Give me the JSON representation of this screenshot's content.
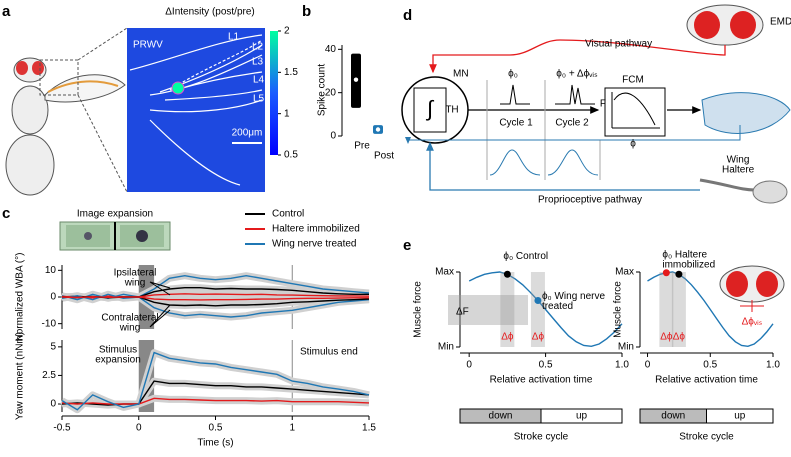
{
  "panel_labels": [
    "a",
    "b",
    "c",
    "d",
    "e"
  ],
  "panel_a": {
    "colorbar_title": "ΔIntensity (post/pre)",
    "colorbar_lim": [
      0.5,
      2
    ],
    "colorbar_ticks": [
      2,
      1.5,
      1,
      0.5
    ],
    "labels": [
      "PRWV",
      "L1",
      "L2",
      "L3",
      "L4",
      "L5"
    ],
    "scale_bar": "200μm"
  },
  "panel_c": {
    "inset_title": "Image expansion",
    "annotations": [
      [
        "Ipsilateral",
        "wing"
      ],
      [
        "Contralateral",
        "wing"
      ],
      [
        "Stimulus",
        "expansion"
      ],
      [
        "Stimulus end"
      ]
    ]
  },
  "panel_d": {
    "emd": "EMD",
    "visual": "Visual pathway",
    "mn": "MN",
    "th": "TH",
    "phi0": "ϕ₀",
    "phi1": "ϕ₀ + Δϕᵥᵢₛ",
    "cycle1": "Cycle 1",
    "cycle2": "Cycle 2",
    "fcm": "FCM",
    "f": "F",
    "phi": "ϕ",
    "wing": "Wing",
    "proprio": "Proprioceptive pathway",
    "haltere": "Haltere"
  },
  "panel_e": {
    "delta_f": "ΔF",
    "delta_phi": "Δϕ",
    "delta_phi_vis": "Δϕᵥᵢₛ",
    "stroke_down": "down",
    "stroke_up": "up",
    "stroke_title": "Stroke cycle"
  },
  "chart_data": [
    {
      "type": "box",
      "ylabel": "Spike count",
      "categories": [
        "Pre",
        "Post"
      ],
      "ylim": [
        0,
        42
      ],
      "yticks": [
        0,
        20,
        40
      ],
      "boxes": [
        {
          "low": 13,
          "high": 38,
          "median": 26,
          "color": "#000000"
        },
        {
          "low": 1,
          "high": 5,
          "median": 3,
          "color": "#1f77b4"
        }
      ]
    },
    {
      "type": "line",
      "ylabel": "Normalized WBA (°)",
      "xlim": [
        -0.5,
        1.5
      ],
      "ylim": [
        -12,
        12
      ],
      "yticks": [
        -10,
        0,
        10
      ],
      "shade": [
        0,
        0.1
      ],
      "vline": 1,
      "x": [
        -0.5,
        -0.4,
        -0.3,
        -0.2,
        -0.1,
        0,
        0.1,
        0.2,
        0.3,
        0.4,
        0.5,
        0.6,
        0.7,
        0.8,
        0.9,
        1,
        1.1,
        1.2,
        1.3,
        1.4,
        1.5
      ],
      "series": [
        {
          "color": "#1f77b4",
          "values": [
            0.5,
            -1,
            1,
            -0.5,
            1,
            0,
            3,
            7,
            8,
            7,
            6.5,
            7,
            8,
            7,
            6,
            5,
            4,
            3,
            2.5,
            2,
            1.5
          ]
        },
        {
          "color": "#000000",
          "values": [
            0,
            0.3,
            -0.2,
            0.2,
            0,
            0,
            2,
            3,
            3.5,
            3.5,
            3,
            3.2,
            3,
            3,
            2.8,
            2.5,
            2,
            1.5,
            1.2,
            1,
            1
          ]
        },
        {
          "color": "#e41a1c",
          "values": [
            0.2,
            0,
            -0.3,
            0.3,
            0,
            0,
            0.8,
            1,
            1.2,
            1,
            1.1,
            1,
            0.9,
            1,
            0.8,
            0.7,
            0.6,
            0.5,
            0.4,
            0.4,
            0.3
          ]
        },
        {
          "color": "#1f77b4",
          "values": [
            -0.5,
            0.5,
            -1,
            1,
            -0.5,
            0,
            -4,
            -6,
            -7,
            -6.5,
            -7,
            -7.5,
            -7,
            -6,
            -5.5,
            -5,
            -4,
            -3,
            -2,
            -1.5,
            -1
          ]
        },
        {
          "color": "#000000",
          "values": [
            0,
            -0.2,
            0.2,
            -0.3,
            0,
            0,
            -2,
            -3,
            -3.2,
            -3,
            -3.3,
            -3,
            -3,
            -2.8,
            -2.5,
            -2,
            -1.8,
            -1.5,
            -1.2,
            -1,
            -0.8
          ]
        },
        {
          "color": "#e41a1c",
          "values": [
            0,
            -0.2,
            0.1,
            -0.1,
            0,
            0,
            -0.8,
            -1,
            -1,
            -1.1,
            -1,
            -1,
            -0.9,
            -0.8,
            -0.8,
            -0.6,
            -0.5,
            -0.5,
            -0.4,
            -0.3,
            -0.3
          ]
        }
      ]
    },
    {
      "type": "line",
      "ylabel": "Yaw moment (nNm)",
      "xlabel": "Time (s)",
      "xlim": [
        -0.5,
        1.5
      ],
      "ylim": [
        -0.7,
        5.6
      ],
      "xticks": [
        -0.5,
        0,
        0.5,
        1,
        1.5
      ],
      "yticks": [
        0,
        2.5,
        5
      ],
      "shade": [
        0,
        0.1
      ],
      "vline": 1,
      "x": [
        -0.5,
        -0.4,
        -0.3,
        -0.2,
        -0.1,
        0,
        0.1,
        0.2,
        0.3,
        0.4,
        0.5,
        0.6,
        0.7,
        0.8,
        0.9,
        1,
        1.1,
        1.2,
        1.3,
        1.4,
        1.5
      ],
      "series": [
        {
          "name": "Control",
          "color": "#000000",
          "values": [
            0,
            0.1,
            0,
            -0.1,
            0,
            0,
            2,
            1.8,
            1.8,
            1.7,
            1.6,
            1.6,
            1.5,
            1.5,
            1.4,
            1.3,
            1.2,
            1.1,
            1,
            0.9,
            0.8
          ]
        },
        {
          "name": "Haltere immobilized",
          "color": "#e41a1c",
          "values": [
            0.1,
            0,
            0.1,
            0,
            0,
            0,
            0.5,
            0.4,
            0.4,
            0.35,
            0.3,
            0.3,
            0.3,
            0.25,
            0.3,
            0.2,
            0.2,
            0.2,
            0.2,
            0.15,
            0.1
          ]
        },
        {
          "name": "Wing nerve treated",
          "color": "#1f77b4",
          "values": [
            0.3,
            -0.5,
            0.8,
            0.2,
            -0.3,
            0,
            4.5,
            4,
            3.8,
            3.6,
            3.5,
            3.2,
            3,
            2.8,
            2.6,
            2,
            1.8,
            1.5,
            1.3,
            1.1,
            0.8
          ]
        }
      ]
    },
    {
      "type": "line",
      "ylabel": "Muscle force",
      "xlabel": "Relative activation time",
      "xlim": [
        -0.06,
        1
      ],
      "ylim": [
        0,
        1
      ],
      "xticks": [
        0,
        0.5,
        {
          "value": 1,
          "label": "1.0"
        }
      ],
      "yticks": [
        {
          "value": 0,
          "label": "Min"
        },
        {
          "value": 1,
          "label": "Max"
        }
      ],
      "x": [
        0,
        0.05,
        0.1,
        0.15,
        0.2,
        0.25,
        0.3,
        0.35,
        0.4,
        0.45,
        0.5,
        0.55,
        0.6,
        0.65,
        0.7,
        0.75,
        0.8,
        0.85,
        0.9,
        0.95,
        1
      ],
      "series": [
        {
          "color": "#1f77b4",
          "values": [
            0.88,
            0.93,
            0.97,
            0.99,
            1,
            0.97,
            0.91,
            0.83,
            0.73,
            0.62,
            0.5,
            0.38,
            0.26,
            0.15,
            0.07,
            0.02,
            0.01,
            0.04,
            0.11,
            0.2,
            0.31
          ]
        }
      ],
      "points": [
        {
          "lines": [
            "ϕ₀ Control"
          ],
          "x": 0.25,
          "y": 0.97,
          "color": "#000000"
        },
        {
          "lines": [
            "ϕ₀ Wing nerve",
            "treated"
          ],
          "x": 0.45,
          "y": 0.62,
          "color": "#1f77b4"
        }
      ]
    },
    {
      "type": "line",
      "ylabel": "Muscle force",
      "xlabel": "Relative activation time",
      "xlim": [
        -0.06,
        1
      ],
      "ylim": [
        0,
        1
      ],
      "xticks": [
        0,
        0.5,
        {
          "value": 1,
          "label": "1.0"
        }
      ],
      "yticks": [
        {
          "value": 0,
          "label": "Min"
        },
        {
          "value": 1,
          "label": "Max"
        }
      ],
      "x": [
        0,
        0.05,
        0.1,
        0.15,
        0.2,
        0.25,
        0.3,
        0.35,
        0.4,
        0.45,
        0.5,
        0.55,
        0.6,
        0.65,
        0.7,
        0.75,
        0.8,
        0.85,
        0.9,
        0.95,
        1
      ],
      "series": [
        {
          "color": "#1f77b4",
          "values": [
            0.88,
            0.93,
            0.97,
            0.99,
            1,
            0.97,
            0.91,
            0.83,
            0.73,
            0.62,
            0.5,
            0.38,
            0.26,
            0.15,
            0.07,
            0.02,
            0.01,
            0.04,
            0.11,
            0.2,
            0.31
          ]
        }
      ],
      "points": [
        {
          "lines": [
            "ϕ₀ Haltere",
            "immobilized"
          ],
          "x": 0.15,
          "y": 0.99,
          "color": "#e41a1c"
        },
        {
          "lines": [],
          "x": 0.25,
          "y": 0.97,
          "color": "#000000"
        }
      ]
    }
  ]
}
